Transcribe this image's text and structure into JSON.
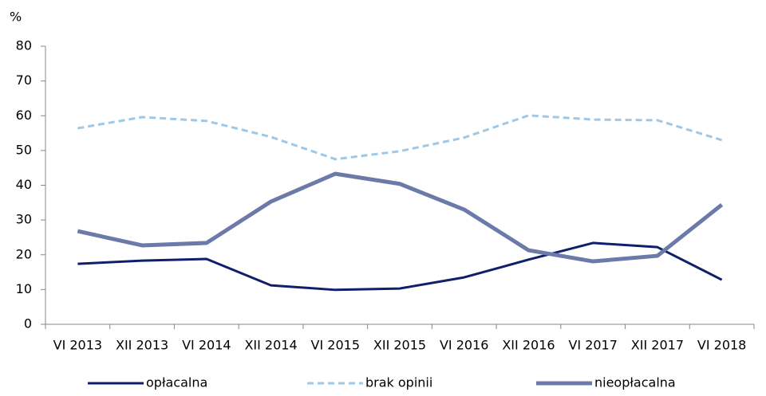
{
  "chart_data": {
    "type": "line",
    "y_label": "%",
    "categories": [
      "VI 2013",
      "XII 2013",
      "VI 2014",
      "XII 2014",
      "VI 2015",
      "XII 2015",
      "VI 2016",
      "XII 2016",
      "VI 2017",
      "XII 2017",
      "VI 2018"
    ],
    "series": [
      {
        "name": "opłacalna",
        "color": "#0f1f6b",
        "line_style": "solid",
        "values": [
          17.4,
          18.3,
          18.8,
          11.2,
          9.9,
          10.3,
          13.5,
          18.6,
          23.4,
          22.2,
          12.8
        ]
      },
      {
        "name": "brak  opinii",
        "color": "#9ec8e6",
        "line_style": "dashed",
        "values": [
          56.4,
          59.6,
          58.5,
          53.9,
          47.5,
          49.8,
          53.7,
          60.1,
          58.9,
          58.7,
          53.0
        ]
      },
      {
        "name": "nieopłacalna",
        "color": "#6b7aa8",
        "line_style": "solid",
        "values": [
          26.8,
          22.7,
          23.4,
          35.3,
          43.3,
          40.4,
          33.0,
          21.3,
          18.1,
          19.7,
          34.4
        ]
      }
    ],
    "ylim": [
      0,
      80
    ],
    "yticks": [
      0,
      10,
      20,
      30,
      40,
      50,
      60,
      70,
      80
    ],
    "legend": "bottom"
  }
}
